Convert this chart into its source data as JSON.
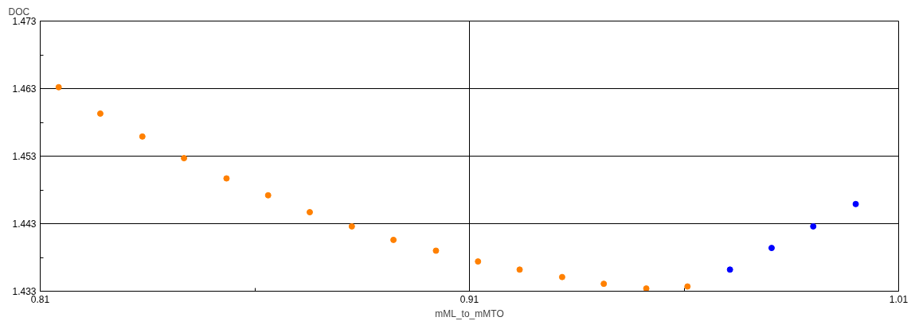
{
  "chart_data": {
    "type": "scatter",
    "xlabel": "mML_to_mMTO",
    "ylabel": "DOC",
    "xlim": [
      0.81,
      1.01
    ],
    "ylim": [
      1.433,
      1.473
    ],
    "xticks": [
      0.81,
      {
        "value": 0.86,
        "label": null
      },
      0.91,
      {
        "value": 0.96,
        "label": null
      },
      1.01
    ],
    "yticks": [
      1.433,
      {
        "value": 1.438,
        "label": null
      },
      1.443,
      {
        "value": 1.448,
        "label": null
      },
      1.453,
      {
        "value": 1.458,
        "label": null
      },
      1.463,
      {
        "value": 1.468,
        "label": null
      },
      1.473
    ],
    "grid": true,
    "marker": "circle",
    "series": [
      {
        "color": "#ff8000",
        "x": [
          0.8143,
          0.824,
          0.8338,
          0.8435,
          0.8534,
          0.8631,
          0.8728,
          0.8826,
          0.8923,
          0.9022,
          0.912,
          0.9217,
          0.9316,
          0.9413,
          0.9512,
          0.9608
        ],
        "values": [
          1.4632,
          1.4593,
          1.4559,
          1.4527,
          1.4497,
          1.4472,
          1.4447,
          1.4426,
          1.4406,
          1.439,
          1.4374,
          1.4362,
          1.4351,
          1.4341,
          1.4334,
          1.4337
        ]
      },
      {
        "color": "#0000ff",
        "x": [
          0.9707,
          0.9804,
          0.9901,
          1.0
        ],
        "values": [
          1.4362,
          1.4394,
          1.4426,
          1.4459
        ]
      }
    ]
  }
}
